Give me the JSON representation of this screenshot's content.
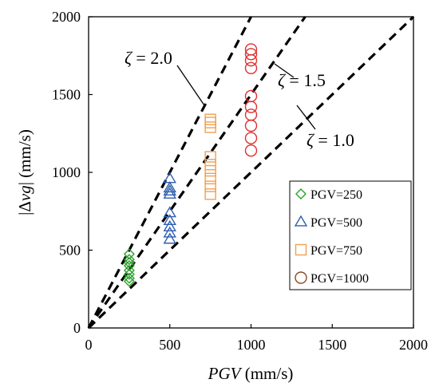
{
  "chart_data": {
    "type": "scatter",
    "title": "",
    "xlabel": {
      "italic": "PGV",
      "rest": " (mm/s)"
    },
    "ylabel": {
      "pre": "|Δ",
      "italic": "vg",
      "post": "| (mm/s)"
    },
    "xlim": [
      0,
      2000
    ],
    "ylim": [
      0,
      2000
    ],
    "xticks": [
      "0",
      "500",
      "1000",
      "1500",
      "2000"
    ],
    "yticks": [
      "0",
      "500",
      "1000",
      "1500",
      "2000"
    ],
    "grid": false,
    "legend_position": "right",
    "series": [
      {
        "name": "PGV=250",
        "marker": "diamond",
        "color": "#2ca02c",
        "x": [
          250,
          250,
          250,
          250,
          250,
          250,
          250,
          250
        ],
        "y": [
          300,
          320,
          345,
          370,
          400,
          420,
          440,
          475
        ]
      },
      {
        "name": "PGV=500",
        "marker": "triangle",
        "color": "#2f5faf",
        "x": [
          500,
          500,
          500,
          500,
          500,
          500,
          500,
          500,
          500
        ],
        "y": [
          570,
          610,
          650,
          690,
          740,
          860,
          880,
          900,
          960
        ]
      },
      {
        "name": "PGV=750",
        "marker": "square",
        "color": "#f0a050",
        "x": [
          750,
          750,
          750,
          750,
          750,
          750,
          750,
          750,
          750
        ],
        "y": [
          860,
          910,
          960,
          1010,
          1050,
          1100,
          1290,
          1320,
          1340
        ]
      },
      {
        "name": "PGV=1000",
        "marker": "circle",
        "color": "#e03030",
        "legend_color": "#8a4a20",
        "x": [
          1000,
          1000,
          1000,
          1000,
          1000,
          1000,
          1000,
          1000,
          1000,
          1000
        ],
        "y": [
          1140,
          1220,
          1300,
          1370,
          1420,
          1490,
          1670,
          1720,
          1760,
          1790
        ]
      }
    ],
    "reference_lines": [
      {
        "zeta": 2.0,
        "slope": 2.0,
        "label": "ζ = 2.0"
      },
      {
        "zeta": 1.5,
        "slope": 1.5,
        "label": "ζ = 1.5"
      },
      {
        "zeta": 1.0,
        "slope": 1.0,
        "label": "ζ = 1.0"
      }
    ]
  }
}
